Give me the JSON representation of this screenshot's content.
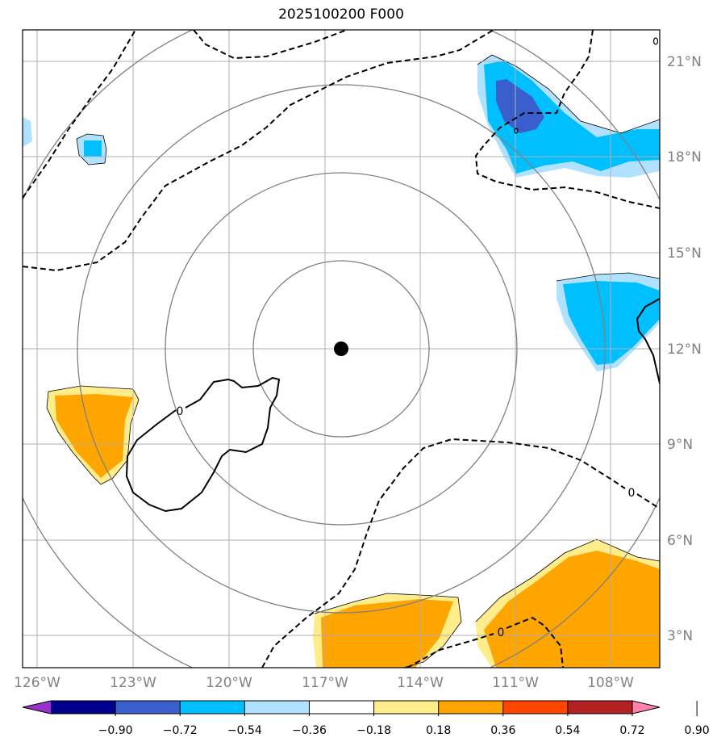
{
  "title": "2025100200 F000",
  "lon_labels": [
    "126°W",
    "123°W",
    "120°W",
    "117°W",
    "114°W",
    "111°W",
    "108°W"
  ],
  "lat_labels": [
    "21°N",
    "18°N",
    "15°N",
    "12°N",
    "9°N",
    "6°N",
    "3°N"
  ],
  "contour_label": "0",
  "colorbar": {
    "colors": [
      "#9932CC",
      "#00008B",
      "#3A5FCD",
      "#00BFFF",
      "#B0E2FF",
      "#FFFFFF",
      "#FFEC8B",
      "#FFA500",
      "#FF4500",
      "#B22222",
      "#FF82AB"
    ],
    "ticks": [
      "−0.90",
      "−0.72",
      "−0.54",
      "−0.36",
      "−0.18",
      "0.18",
      "0.36",
      "0.54",
      "0.72",
      "0.90"
    ]
  },
  "center_marker": {
    "lon": -116.5,
    "lat": 12.0
  },
  "range_rings": 4
}
